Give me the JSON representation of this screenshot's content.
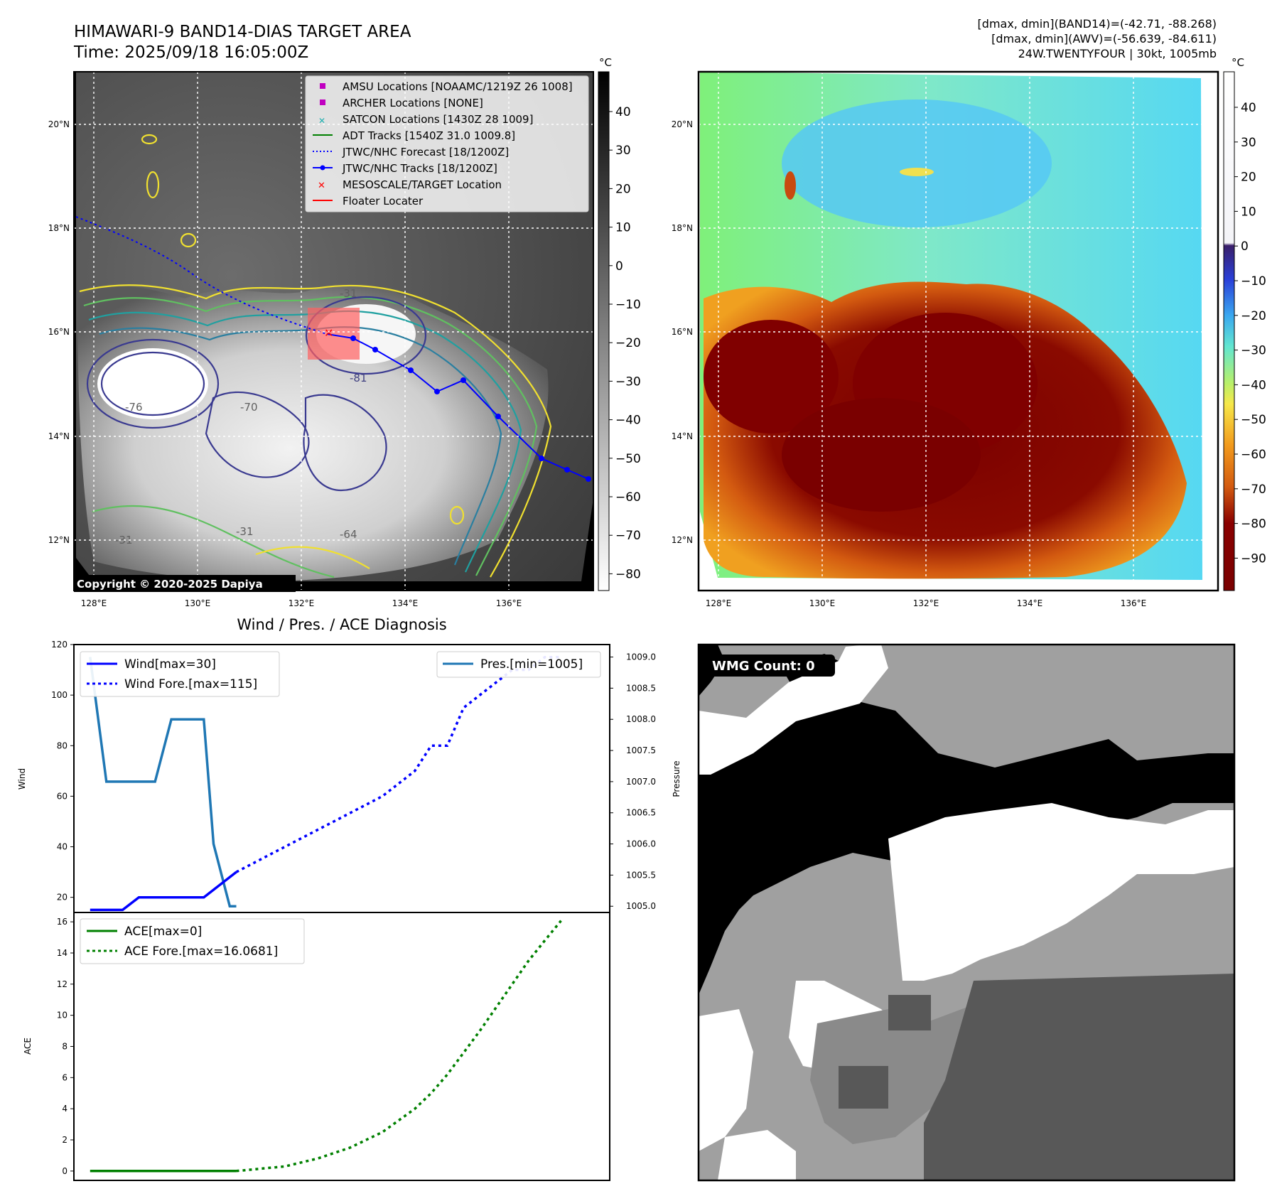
{
  "header": {
    "title": "HIMAWARI-9 BAND14-DIAS TARGET AREA",
    "time": "Time: 2025/09/18 16:05:00Z",
    "stats_line1": "[dmax, dmin](BAND14)=(-42.71, -88.268)",
    "stats_line2": "[dmax, dmin](AWV)=(-56.639, -84.611)",
    "stats_line3": "24W.TWENTYFOUR | 30kt, 1005mb"
  },
  "map": {
    "lon_ticks": [
      "128°E",
      "130°E",
      "132°E",
      "134°E",
      "136°E"
    ],
    "lat_ticks": [
      "20°N",
      "18°N",
      "16°N",
      "14°N",
      "12°N"
    ],
    "copyright": "Copyright © 2020-2025 Dapiya",
    "contour_labels": [
      "-31",
      "-81",
      "-70",
      "-64",
      "-76",
      "-31",
      "-31"
    ]
  },
  "legend": [
    {
      "label": "AMSU Locations [NOAAMC/1219Z 26 1008]",
      "color": "#c000c0",
      "marker": "square"
    },
    {
      "label": "ARCHER Locations [NONE]",
      "color": "#c000c0",
      "marker": "square"
    },
    {
      "label": "SATCON Locations [1430Z 28 1009]",
      "color": "#20b0b0",
      "marker": "x"
    },
    {
      "label": "ADT Tracks [1540Z 31.0 1009.8]",
      "color": "#008000",
      "marker": "line"
    },
    {
      "label": "JTWC/NHC Forecast [18/1200Z]",
      "color": "#0000ff",
      "marker": "dotted"
    },
    {
      "label": "JTWC/NHC Tracks [18/1200Z]",
      "color": "#0000ff",
      "marker": "line-dot"
    },
    {
      "label": "MESOSCALE/TARGET Location",
      "color": "#ff0000",
      "marker": "x"
    },
    {
      "label": "Floater Locater",
      "color": "#ff0000",
      "marker": "line"
    }
  ],
  "colorbar_gray": {
    "unit": "°C",
    "ticks": [
      "40",
      "30",
      "20",
      "10",
      "0",
      "−10",
      "−20",
      "−30",
      "−40",
      "−50",
      "−60",
      "−70",
      "−80"
    ]
  },
  "colorbar_color": {
    "unit": "°C",
    "ticks": [
      "40",
      "30",
      "20",
      "10",
      "0",
      "−10",
      "−20",
      "−30",
      "−40",
      "−50",
      "−60",
      "−70",
      "−80",
      "−90"
    ]
  },
  "wmg": {
    "label": "WMG Count: 0"
  },
  "chart_data": [
    {
      "type": "line",
      "title": "Wind / Pres. / ACE Diagnosis",
      "ylabel": "Wind",
      "ylabel_right": "Pressure",
      "ylim": [
        14,
        120
      ],
      "ylim_right": [
        1004.9,
        1009.2
      ],
      "yticks": [
        20,
        40,
        60,
        80,
        100,
        120
      ],
      "yticks_right": [
        1005.0,
        1005.5,
        1006.0,
        1006.5,
        1007.0,
        1007.5,
        1008.0,
        1008.5,
        1009.0
      ],
      "x": [
        0,
        1,
        2,
        3,
        4,
        5,
        6,
        7,
        8,
        9,
        10,
        11,
        12,
        13,
        14,
        15
      ],
      "series": [
        {
          "name": "Wind[max=30]",
          "axis": "left",
          "style": "solid",
          "color": "#0000ff",
          "x": [
            0,
            1,
            1.5,
            3,
            3.5,
            4.5
          ],
          "values": [
            15,
            15,
            20,
            20,
            20,
            30
          ]
        },
        {
          "name": "Wind Fore.[max=115]",
          "axis": "left",
          "style": "dotted",
          "color": "#0000ff",
          "x": [
            4.5,
            6,
            7.5,
            9,
            9.5,
            10,
            10.5,
            11,
            11.5,
            12,
            12.5,
            13,
            13.5,
            14,
            14.5
          ],
          "values": [
            30,
            40,
            50,
            60,
            65,
            70,
            80,
            80,
            95,
            100,
            105,
            110,
            110,
            115,
            115
          ]
        },
        {
          "name": "Pres.[min=1005]",
          "axis": "right",
          "style": "solid",
          "color": "#1f77b4",
          "x": [
            0,
            0.5,
            2,
            2.5,
            3.5,
            3.8,
            4.3,
            4.5
          ],
          "values": [
            1009.0,
            1007.0,
            1007.0,
            1008.0,
            1008.0,
            1006.0,
            1005.0,
            1005.0
          ]
        }
      ]
    },
    {
      "type": "line",
      "ylabel": "ACE",
      "ylim": [
        -0.6,
        16.6
      ],
      "yticks": [
        0,
        2,
        4,
        6,
        8,
        10,
        12,
        14,
        16
      ],
      "series": [
        {
          "name": "ACE[max=0]",
          "style": "solid",
          "color": "#008000",
          "x": [
            0,
            4.5
          ],
          "values": [
            0,
            0
          ]
        },
        {
          "name": "ACE Fore.[max=16.0681]",
          "style": "dotted",
          "color": "#008000",
          "x": [
            4.5,
            6,
            7,
            8,
            9,
            10,
            10.5,
            11,
            11.5,
            12,
            12.5,
            13,
            13.5,
            14,
            14.5
          ],
          "values": [
            0,
            0.3,
            0.8,
            1.5,
            2.5,
            4.0,
            5.0,
            6.2,
            7.6,
            9.0,
            10.5,
            12.0,
            13.5,
            14.8,
            16.07
          ]
        }
      ]
    }
  ]
}
